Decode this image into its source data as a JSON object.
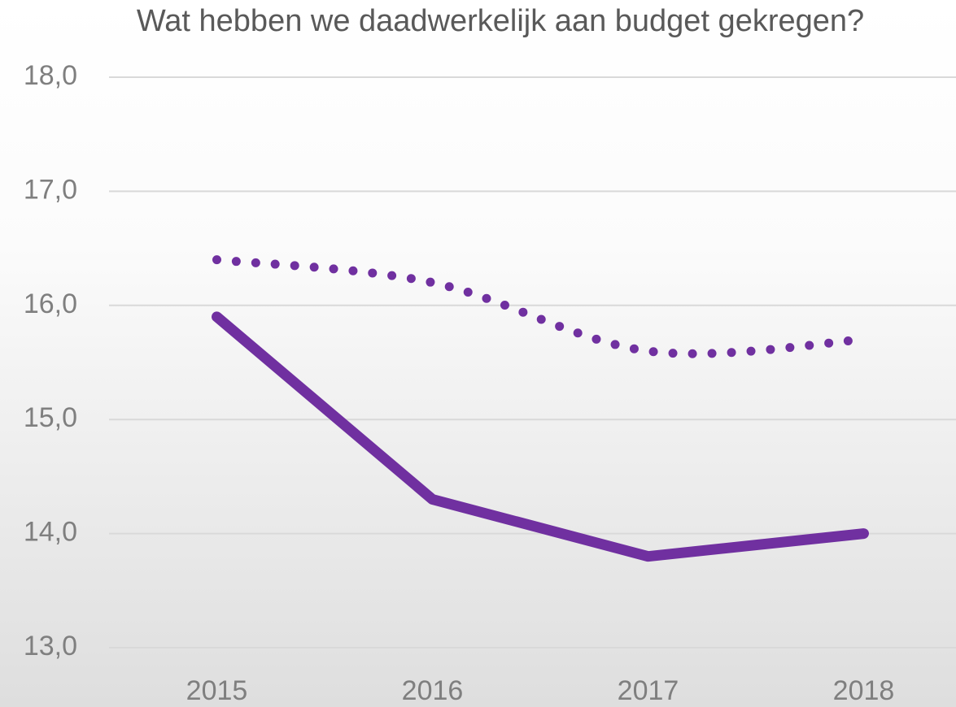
{
  "chart_data": {
    "type": "line",
    "title": "Wat hebben we daadwerkelijk aan budget gekregen?",
    "categories": [
      "2015",
      "2016",
      "2017",
      "2018"
    ],
    "series": [
      {
        "color": "#7030a0",
        "style": "solid",
        "values": [
          15.9,
          14.3,
          13.8,
          14.0
        ]
      },
      {
        "color": "#7030a0",
        "style": "dotted",
        "smooth": true,
        "values": [
          16.4,
          16.2,
          15.6,
          15.7
        ]
      }
    ],
    "ylim": [
      13,
      18
    ],
    "yticks": [
      {
        "value": 13,
        "label": "13,0"
      },
      {
        "value": 14,
        "label": "14,0"
      },
      {
        "value": 15,
        "label": "15,0"
      },
      {
        "value": 16,
        "label": "16,0"
      },
      {
        "value": 17,
        "label": "17,0"
      },
      {
        "value": 18,
        "label": "18,0"
      }
    ],
    "grid": true
  }
}
